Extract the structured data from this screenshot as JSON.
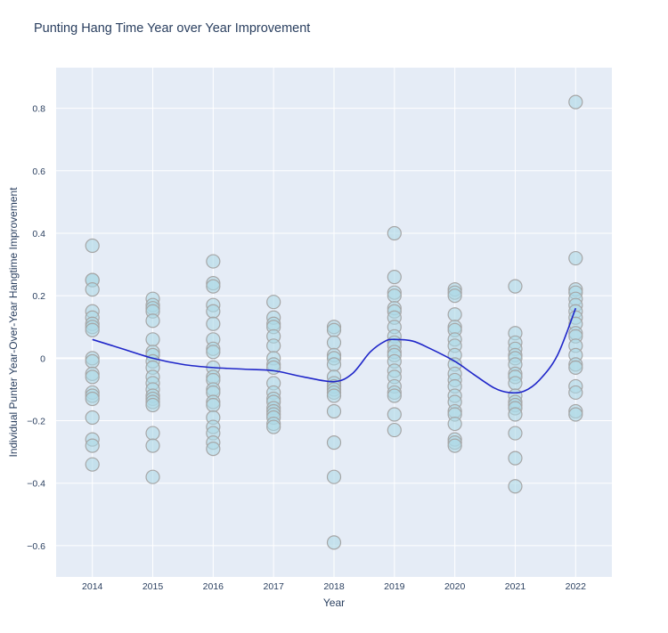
{
  "chart_data": {
    "type": "scatter",
    "title": "Punting Hang Time Year over Year Improvement",
    "xlabel": "Year",
    "ylabel": "Individual Punter Year-Over-Year Hangtime Improvement",
    "categories": [
      "2014",
      "2015",
      "2016",
      "2017",
      "2018",
      "2019",
      "2020",
      "2021",
      "2022"
    ],
    "x_tick_labels": [
      "2014",
      "2015",
      "2016",
      "2017",
      "2018",
      "2019",
      "2020",
      "2021",
      "2022"
    ],
    "y_ticks": [
      -0.6,
      -0.4,
      -0.2,
      0,
      0.2,
      0.4,
      0.6,
      0.8
    ],
    "y_tick_labels": [
      "−0.6",
      "−0.4",
      "−0.2",
      "0",
      "0.2",
      "0.4",
      "0.6",
      "0.8"
    ],
    "xlim": [
      2013.4,
      2022.6
    ],
    "ylim": [
      -0.7,
      0.93
    ],
    "grid": true,
    "series": [
      {
        "name": "punters",
        "marker_color": "#add8e6",
        "points": {
          "2014": [
            0.36,
            0.25,
            0.25,
            0.22,
            0.15,
            0.13,
            0.11,
            0.1,
            0.09,
            0.0,
            -0.01,
            -0.05,
            -0.06,
            -0.11,
            -0.12,
            -0.13,
            -0.19,
            -0.26,
            -0.28,
            -0.34
          ],
          "2015": [
            0.19,
            0.17,
            0.16,
            0.15,
            0.12,
            0.06,
            0.02,
            0.01,
            -0.01,
            -0.03,
            -0.06,
            -0.08,
            -0.1,
            -0.12,
            -0.13,
            -0.14,
            -0.15,
            -0.24,
            -0.28,
            -0.38
          ],
          "2016": [
            0.31,
            0.24,
            0.23,
            0.17,
            0.15,
            0.11,
            0.06,
            0.03,
            0.02,
            -0.03,
            -0.06,
            -0.07,
            -0.1,
            -0.11,
            -0.14,
            -0.15,
            -0.19,
            -0.22,
            -0.24,
            -0.27,
            -0.29
          ],
          "2017": [
            0.18,
            0.13,
            0.11,
            0.1,
            0.07,
            0.04,
            0.0,
            -0.02,
            -0.03,
            -0.08,
            -0.11,
            -0.13,
            -0.14,
            -0.16,
            -0.17,
            -0.18,
            -0.19,
            -0.21,
            -0.22
          ],
          "2018": [
            0.1,
            0.09,
            0.05,
            0.01,
            0.0,
            -0.02,
            -0.06,
            -0.08,
            -0.09,
            -0.1,
            -0.11,
            -0.12,
            -0.17,
            -0.27,
            -0.38,
            -0.59
          ],
          "2019": [
            0.4,
            0.26,
            0.21,
            0.2,
            0.16,
            0.15,
            0.13,
            0.1,
            0.07,
            0.05,
            0.04,
            0.02,
            0.01,
            -0.01,
            -0.04,
            -0.06,
            -0.09,
            -0.11,
            -0.12,
            -0.18,
            -0.23
          ],
          "2020": [
            0.22,
            0.21,
            0.2,
            0.14,
            0.1,
            0.09,
            0.06,
            0.04,
            0.01,
            -0.02,
            -0.05,
            -0.07,
            -0.09,
            -0.12,
            -0.14,
            -0.17,
            -0.18,
            -0.21,
            -0.26,
            -0.27,
            -0.28
          ],
          "2021": [
            0.23,
            0.08,
            0.05,
            0.03,
            0.01,
            0.0,
            -0.02,
            -0.05,
            -0.06,
            -0.08,
            -0.12,
            -0.14,
            -0.15,
            -0.16,
            -0.18,
            -0.24,
            -0.32,
            -0.41
          ],
          "2022": [
            0.82,
            0.32,
            0.22,
            0.21,
            0.19,
            0.17,
            0.15,
            0.13,
            0.11,
            0.08,
            0.07,
            0.04,
            0.01,
            -0.02,
            -0.03,
            -0.09,
            -0.11,
            -0.17,
            -0.18
          ]
        }
      },
      {
        "name": "trend",
        "line_color": "#1f26c9",
        "values": [
          0.06,
          0.0,
          -0.03,
          -0.04,
          -0.07,
          0.06,
          -0.01,
          -0.11,
          0.16
        ],
        "curve": [
          [
            2014.0,
            0.06
          ],
          [
            2014.5,
            0.03
          ],
          [
            2015.0,
            0.0
          ],
          [
            2015.5,
            -0.02
          ],
          [
            2016.0,
            -0.03
          ],
          [
            2016.5,
            -0.035
          ],
          [
            2017.0,
            -0.04
          ],
          [
            2017.5,
            -0.06
          ],
          [
            2018.0,
            -0.075
          ],
          [
            2018.3,
            -0.05
          ],
          [
            2018.6,
            0.02
          ],
          [
            2018.85,
            0.055
          ],
          [
            2019.0,
            0.06
          ],
          [
            2019.3,
            0.055
          ],
          [
            2019.6,
            0.03
          ],
          [
            2020.0,
            -0.01
          ],
          [
            2020.3,
            -0.05
          ],
          [
            2020.65,
            -0.095
          ],
          [
            2020.9,
            -0.11
          ],
          [
            2021.15,
            -0.105
          ],
          [
            2021.4,
            -0.07
          ],
          [
            2021.7,
            0.01
          ],
          [
            2022.0,
            0.16
          ]
        ]
      }
    ]
  }
}
